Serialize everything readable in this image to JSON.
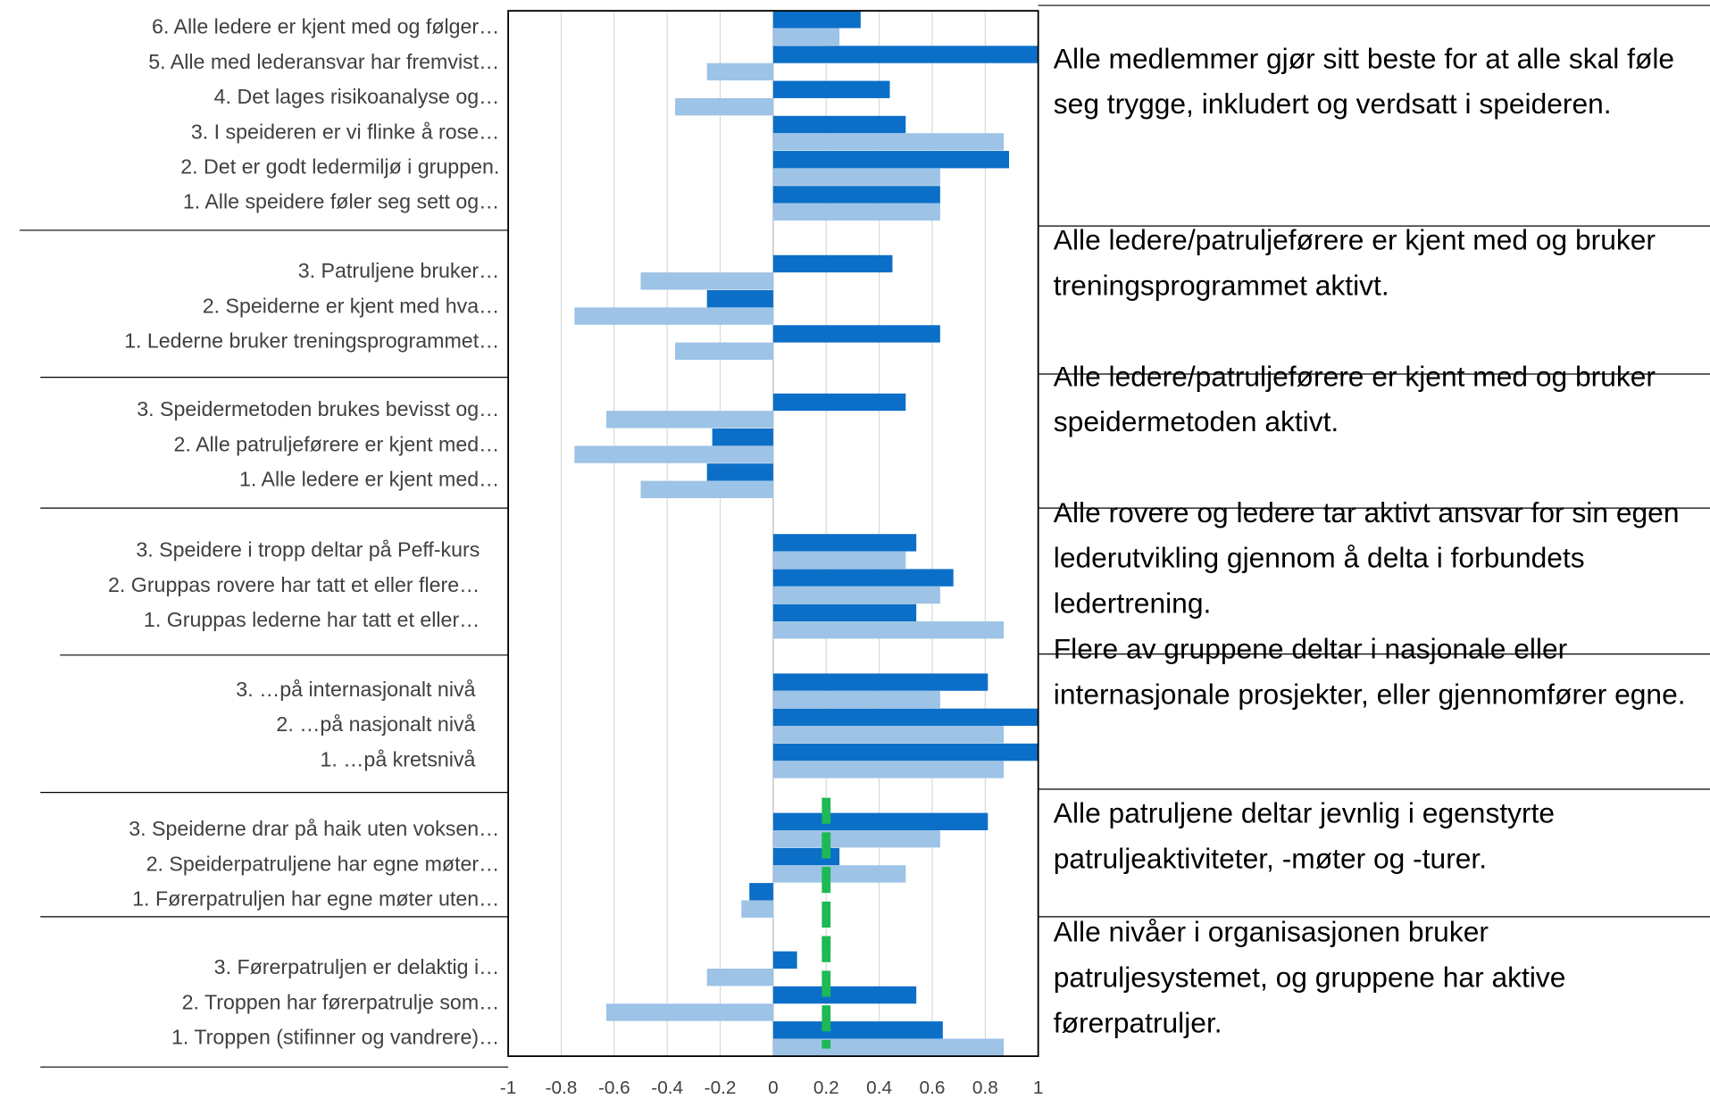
{
  "chart_data": {
    "type": "bar",
    "orientation": "horizontal",
    "xlim": [
      -1,
      1
    ],
    "xticks": [
      -1,
      -0.8,
      -0.6,
      -0.4,
      -0.2,
      0,
      0.2,
      0.4,
      0.6,
      0.8,
      1
    ],
    "grid": true,
    "series": [
      {
        "color": "#0b6fc8"
      },
      {
        "color": "#9dc3e6"
      }
    ],
    "groups": [
      {
        "label": "Alle medlemmer gjør sitt beste for at alle skal føle seg trygge, inkludert og verdsatt i speideren.",
        "categories": [
          "6.   Alle ledere er kjent med og følger…",
          "5.   Alle med lederansvar har fremvist…",
          "4.   Det lages risikoanalyse og…",
          "3.   I speideren er vi flinke å rose…",
          "2.   Det er godt ledermiljø i gruppen.",
          "1.   Alle speidere føler seg sett og…"
        ],
        "values": [
          [
            0.33,
            1.0,
            0.44,
            0.5,
            0.89,
            0.63
          ],
          [
            0.25,
            -0.25,
            -0.37,
            0.87,
            0.63,
            0.63
          ]
        ]
      },
      {
        "label": "Alle ledere/patruljeførere er kjent med og bruker treningsprogrammet aktivt.",
        "categories": [
          "3.   Patruljene bruker…",
          "2.   Speiderne er kjent med hva…",
          "1.   Lederne bruker treningsprogrammet…"
        ],
        "values": [
          [
            0.45,
            -0.25,
            0.63
          ],
          [
            -0.5,
            -0.75,
            -0.37
          ]
        ]
      },
      {
        "label": "Alle ledere/patruljeførere er kjent med og bruker speidermetoden aktivt.",
        "categories": [
          "3.   Speidermetoden brukes bevisst og…",
          "2.   Alle patruljeførere er kjent med…",
          "1.   Alle ledere er kjent med…"
        ],
        "values": [
          [
            0.5,
            -0.23,
            -0.25
          ],
          [
            -0.63,
            -0.75,
            -0.5
          ]
        ]
      },
      {
        "label": "Alle rovere og ledere tar aktivt ansvar for sin egen lederutvikling gjennom å delta i forbundets ledertrening.",
        "categories": [
          "3.   Speidere i tropp deltar på Peff-kurs",
          "2.   Gruppas rovere har tatt et eller flere…",
          "1.   Gruppas lederne har tatt et eller…"
        ],
        "values": [
          [
            0.54,
            0.68,
            0.54
          ],
          [
            0.5,
            0.63,
            0.87
          ]
        ]
      },
      {
        "label": "Flere av gruppene deltar i nasjonale eller internasjonale prosjekter, eller gjennomfører egne.",
        "categories": [
          "3.   …på internasjonalt nivå",
          "2.   …på nasjonalt nivå",
          "1.   …på kretsnivå"
        ],
        "values": [
          [
            0.81,
            1.0,
            1.0
          ],
          [
            0.63,
            0.87,
            0.87
          ]
        ]
      },
      {
        "label": "Alle patruljene deltar jevnlig i egenstyrte patruljeaktiviteter, -møter og -turer.",
        "categories": [
          "3.   Speiderne drar på haik uten voksen…",
          "2.   Speiderpatruljene har egne møter…",
          "1.   Førerpatruljen har egne møter uten…"
        ],
        "values": [
          [
            0.81,
            0.25,
            -0.09
          ],
          [
            0.63,
            0.5,
            -0.12
          ]
        ],
        "target": 0.2
      },
      {
        "label": "Alle nivåer i organisasjonen bruker patruljesystemet, og gruppene har aktive førerpatruljer.",
        "categories": [
          "3.   Førerpatruljen er delaktig i…",
          "2.   Troppen har førerpatrulje som…",
          "1.   Troppen (stifinner og vandrere)…"
        ],
        "values": [
          [
            0.09,
            0.54,
            0.64
          ],
          [
            -0.25,
            -0.63,
            0.87
          ]
        ],
        "target": 0.2,
        "target_color": "#1db954"
      }
    ]
  }
}
